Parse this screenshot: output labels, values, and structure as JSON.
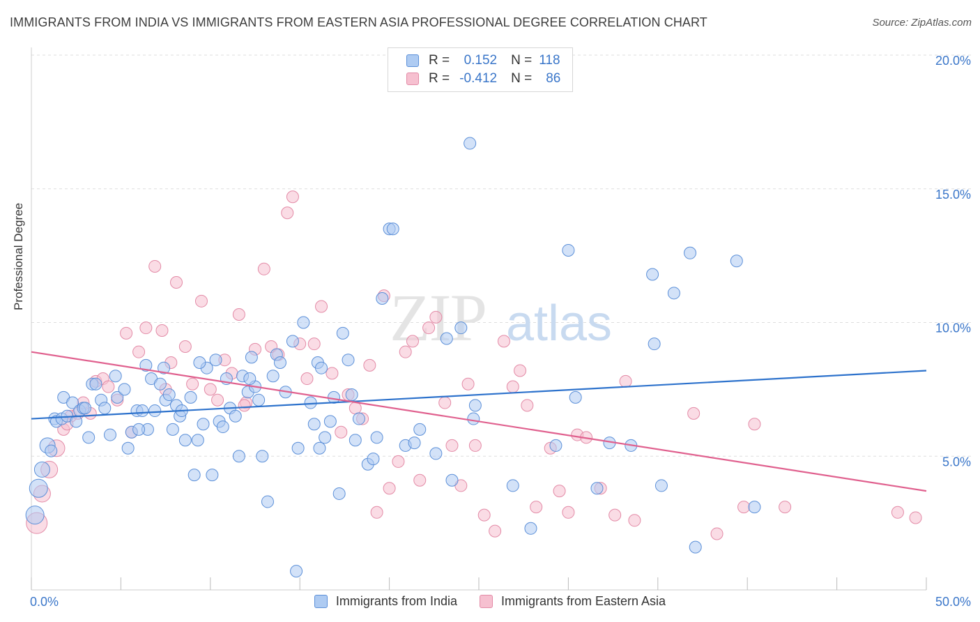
{
  "title": "IMMIGRANTS FROM INDIA VS IMMIGRANTS FROM EASTERN ASIA PROFESSIONAL DEGREE CORRELATION CHART",
  "source": "Source: ZipAtlas.com",
  "watermark": {
    "zip": "ZIP",
    "atlas": "atlas"
  },
  "legend": {
    "r_label": "R =",
    "n_label": "N =",
    "rows": [
      {
        "r": "0.152",
        "n": "118"
      },
      {
        "r": "-0.412",
        "n": "86"
      }
    ]
  },
  "colors": {
    "india_fill": "#aecbf2",
    "india_stroke": "#5b8fd8",
    "india_line": "#2d72cc",
    "ea_fill": "#f6c0d0",
    "ea_stroke": "#e38aa6",
    "ea_line": "#e0608e",
    "axis_text": "#3a76c9",
    "grid": "#dddddd"
  },
  "chart_data": {
    "type": "scatter",
    "title": "IMMIGRANTS FROM INDIA VS IMMIGRANTS FROM EASTERN ASIA PROFESSIONAL DEGREE CORRELATION CHART",
    "xlabel": "",
    "ylabel": "Professional Degree",
    "xlim": [
      0,
      50
    ],
    "ylim": [
      0,
      20
    ],
    "x_tick_labels": [
      "0.0%",
      "50.0%"
    ],
    "y_ticks": [
      5,
      10,
      15,
      20
    ],
    "y_tick_labels": [
      "5.0%",
      "10.0%",
      "15.0%",
      "20.0%"
    ],
    "grid": true,
    "legend_position": "bottom-center",
    "series": [
      {
        "name": "Immigrants from India",
        "r": 0.152,
        "n": 118,
        "trend": [
          [
            0,
            6.4
          ],
          [
            50,
            8.2
          ]
        ],
        "points": [
          [
            0.2,
            2.8
          ],
          [
            0.4,
            3.8
          ],
          [
            0.6,
            4.5
          ],
          [
            0.9,
            5.4
          ],
          [
            1.1,
            5.2
          ],
          [
            1.3,
            6.4
          ],
          [
            1.4,
            6.3
          ],
          [
            1.7,
            6.4
          ],
          [
            1.8,
            7.2
          ],
          [
            2.0,
            6.5
          ],
          [
            2.3,
            7.0
          ],
          [
            2.5,
            6.3
          ],
          [
            2.7,
            6.7
          ],
          [
            2.9,
            6.8
          ],
          [
            3.2,
            5.7
          ],
          [
            3.4,
            7.7
          ],
          [
            3.6,
            7.7
          ],
          [
            3.9,
            7.1
          ],
          [
            4.1,
            6.8
          ],
          [
            4.4,
            5.8
          ],
          [
            4.7,
            8.0
          ],
          [
            4.8,
            7.2
          ],
          [
            5.2,
            7.5
          ],
          [
            5.4,
            5.3
          ],
          [
            5.6,
            5.9
          ],
          [
            5.9,
            6.7
          ],
          [
            6.2,
            6.7
          ],
          [
            6.4,
            8.4
          ],
          [
            6.5,
            6.0
          ],
          [
            6.7,
            7.9
          ],
          [
            6.9,
            6.7
          ],
          [
            7.2,
            7.7
          ],
          [
            7.4,
            8.3
          ],
          [
            7.5,
            7.1
          ],
          [
            7.7,
            7.3
          ],
          [
            7.9,
            6.0
          ],
          [
            8.1,
            6.9
          ],
          [
            8.3,
            6.5
          ],
          [
            8.4,
            6.7
          ],
          [
            8.6,
            5.6
          ],
          [
            8.9,
            7.2
          ],
          [
            9.1,
            4.3
          ],
          [
            9.3,
            5.6
          ],
          [
            9.6,
            6.2
          ],
          [
            9.8,
            8.3
          ],
          [
            10.1,
            4.3
          ],
          [
            10.3,
            8.6
          ],
          [
            10.5,
            6.3
          ],
          [
            10.7,
            6.1
          ],
          [
            10.9,
            7.9
          ],
          [
            11.1,
            6.8
          ],
          [
            11.4,
            6.5
          ],
          [
            11.6,
            5.0
          ],
          [
            11.8,
            8.0
          ],
          [
            12.1,
            7.4
          ],
          [
            12.3,
            8.7
          ],
          [
            12.5,
            7.6
          ],
          [
            12.7,
            7.1
          ],
          [
            12.9,
            5.0
          ],
          [
            13.2,
            3.3
          ],
          [
            13.5,
            8.0
          ],
          [
            13.7,
            8.8
          ],
          [
            13.9,
            8.5
          ],
          [
            14.2,
            7.4
          ],
          [
            14.6,
            9.3
          ],
          [
            14.8,
            0.7
          ],
          [
            14.9,
            5.3
          ],
          [
            15.2,
            10.0
          ],
          [
            15.6,
            7.0
          ],
          [
            15.8,
            6.2
          ],
          [
            16.0,
            8.5
          ],
          [
            16.2,
            8.3
          ],
          [
            16.4,
            5.7
          ],
          [
            16.7,
            6.3
          ],
          [
            16.9,
            7.2
          ],
          [
            17.2,
            3.6
          ],
          [
            17.4,
            9.6
          ],
          [
            17.7,
            8.6
          ],
          [
            17.9,
            7.3
          ],
          [
            18.1,
            5.6
          ],
          [
            18.3,
            6.4
          ],
          [
            18.8,
            4.7
          ],
          [
            19.1,
            4.9
          ],
          [
            19.3,
            5.7
          ],
          [
            19.6,
            10.9
          ],
          [
            20.0,
            13.5
          ],
          [
            20.2,
            13.5
          ],
          [
            20.9,
            5.4
          ],
          [
            21.4,
            5.5
          ],
          [
            21.7,
            6.0
          ],
          [
            22.6,
            5.1
          ],
          [
            23.2,
            9.4
          ],
          [
            23.5,
            4.1
          ],
          [
            24.0,
            9.8
          ],
          [
            24.5,
            16.7
          ],
          [
            24.7,
            6.4
          ],
          [
            24.8,
            6.9
          ],
          [
            26.9,
            3.9
          ],
          [
            27.9,
            2.3
          ],
          [
            29.3,
            5.4
          ],
          [
            30.0,
            12.7
          ],
          [
            30.4,
            7.2
          ],
          [
            31.6,
            3.8
          ],
          [
            32.3,
            5.5
          ],
          [
            33.5,
            5.4
          ],
          [
            34.7,
            11.8
          ],
          [
            34.8,
            9.2
          ],
          [
            35.2,
            3.9
          ],
          [
            35.9,
            11.1
          ],
          [
            36.8,
            12.6
          ],
          [
            37.1,
            1.6
          ],
          [
            39.4,
            12.3
          ],
          [
            40.4,
            3.1
          ],
          [
            16.1,
            5.3
          ],
          [
            12.2,
            7.9
          ],
          [
            6.0,
            6.0
          ],
          [
            3.0,
            6.8
          ],
          [
            9.4,
            8.5
          ]
        ]
      },
      {
        "name": "Immigrants from Eastern Asia",
        "r": -0.412,
        "n": 86,
        "trend": [
          [
            0,
            8.9
          ],
          [
            50,
            3.7
          ]
        ],
        "points": [
          [
            0.3,
            2.5
          ],
          [
            0.6,
            3.6
          ],
          [
            1.0,
            4.5
          ],
          [
            1.4,
            5.3
          ],
          [
            1.8,
            6.0
          ],
          [
            2.2,
            6.5
          ],
          [
            2.6,
            6.6
          ],
          [
            2.9,
            7.0
          ],
          [
            3.3,
            6.6
          ],
          [
            3.6,
            7.8
          ],
          [
            4.0,
            7.9
          ],
          [
            4.3,
            7.6
          ],
          [
            4.8,
            7.1
          ],
          [
            5.3,
            9.6
          ],
          [
            5.6,
            5.9
          ],
          [
            6.0,
            8.9
          ],
          [
            6.4,
            9.8
          ],
          [
            6.9,
            12.1
          ],
          [
            7.3,
            9.7
          ],
          [
            7.8,
            8.5
          ],
          [
            8.1,
            11.5
          ],
          [
            8.6,
            9.1
          ],
          [
            9.0,
            7.7
          ],
          [
            9.5,
            10.8
          ],
          [
            10.0,
            7.5
          ],
          [
            10.4,
            7.1
          ],
          [
            10.8,
            8.6
          ],
          [
            11.2,
            8.1
          ],
          [
            11.6,
            10.3
          ],
          [
            12.0,
            7.0
          ],
          [
            12.5,
            9.0
          ],
          [
            13.0,
            12.0
          ],
          [
            13.4,
            9.1
          ],
          [
            13.8,
            8.8
          ],
          [
            14.3,
            14.1
          ],
          [
            14.6,
            14.7
          ],
          [
            15.0,
            9.2
          ],
          [
            15.4,
            7.9
          ],
          [
            15.8,
            9.2
          ],
          [
            16.2,
            10.6
          ],
          [
            16.8,
            8.1
          ],
          [
            17.3,
            5.9
          ],
          [
            17.7,
            7.3
          ],
          [
            18.1,
            6.8
          ],
          [
            18.5,
            6.4
          ],
          [
            18.9,
            8.4
          ],
          [
            19.3,
            2.9
          ],
          [
            19.7,
            11.0
          ],
          [
            20.0,
            3.8
          ],
          [
            20.5,
            4.8
          ],
          [
            20.9,
            8.9
          ],
          [
            21.3,
            9.3
          ],
          [
            21.7,
            4.1
          ],
          [
            22.2,
            9.8
          ],
          [
            22.6,
            10.2
          ],
          [
            23.1,
            7.0
          ],
          [
            23.5,
            5.4
          ],
          [
            24.0,
            3.9
          ],
          [
            24.4,
            7.7
          ],
          [
            24.8,
            5.4
          ],
          [
            25.3,
            2.8
          ],
          [
            25.9,
            2.2
          ],
          [
            26.4,
            9.3
          ],
          [
            26.9,
            7.6
          ],
          [
            27.3,
            8.2
          ],
          [
            27.7,
            6.9
          ],
          [
            28.2,
            3.1
          ],
          [
            29.0,
            5.3
          ],
          [
            29.5,
            3.7
          ],
          [
            30.0,
            2.9
          ],
          [
            30.5,
            5.8
          ],
          [
            31.0,
            5.7
          ],
          [
            31.8,
            3.8
          ],
          [
            32.6,
            2.8
          ],
          [
            33.2,
            7.8
          ],
          [
            33.7,
            2.6
          ],
          [
            38.3,
            2.1
          ],
          [
            39.8,
            3.1
          ],
          [
            40.4,
            6.2
          ],
          [
            42.1,
            3.1
          ],
          [
            37.0,
            6.6
          ],
          [
            48.4,
            2.9
          ],
          [
            49.4,
            2.7
          ],
          [
            11.9,
            6.9
          ],
          [
            7.5,
            7.5
          ],
          [
            2.0,
            6.2
          ]
        ]
      }
    ]
  },
  "bottom_legend": [
    "Immigrants from India",
    "Immigrants from Eastern Asia"
  ]
}
